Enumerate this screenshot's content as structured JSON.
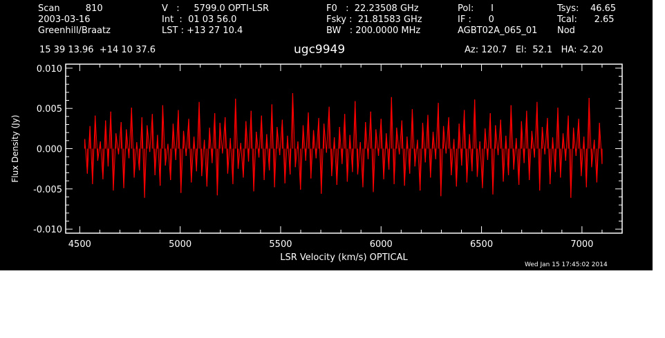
{
  "header": {
    "col1": [
      "Scan         810",
      "2003-03-16",
      "Greenhill/Braatz"
    ],
    "col2": [
      "V   :     5799.0 OPTI-LSR",
      "Int  :  01 03 56.0",
      "LST : +13 27 10.4"
    ],
    "col3": [
      "F0   :  22.23508 GHz",
      "Fsky :  21.81583 GHz",
      "BW   : 200.0000 MHz"
    ],
    "col4": [
      "Pol:      I",
      "IF :      0",
      "AGBT02A_065_01"
    ],
    "col5": [
      "Tsys:    46.65",
      "Tcal:      2.65",
      "Nod"
    ],
    "coords": "15 39 13.96  +14 10 37.6",
    "source": "ugc9949",
    "pointing": "Az: 120.7   El:  52.1   HA: -2.20",
    "timestamp": "Wed Jan 15 17:45:02 2014"
  },
  "colors": {
    "background": "#000000",
    "axes": "#ffffff",
    "trace": "#ff0000"
  },
  "chart_data": {
    "type": "line",
    "title": "ugc9949",
    "xlabel": "LSR Velocity (km/s) OPTICAL",
    "ylabel": "Flux Density (Jy)",
    "xlim": [
      4430,
      7200
    ],
    "ylim": [
      -0.0105,
      0.0105
    ],
    "xticks": [
      4500,
      5000,
      5500,
      6000,
      6500,
      7000
    ],
    "xtick_labels": [
      "4500",
      "5000",
      "5500",
      "6000",
      "6500",
      "7000"
    ],
    "yticks": [
      -0.01,
      -0.005,
      0.0,
      0.005,
      0.01
    ],
    "ytick_labels": [
      "-0.010",
      "-0.005",
      "0.000",
      "0.005",
      "0.010"
    ],
    "grid": false,
    "series": [
      {
        "x_start": 4525,
        "x_end": 7100,
        "values": [
          0.0012,
          -0.0031,
          0.0028,
          -0.0044,
          0.0041,
          -0.0015,
          0.0009,
          -0.0038,
          0.0035,
          -0.0022,
          0.0046,
          -0.0052,
          0.0019,
          -0.0007,
          0.0033,
          -0.0049,
          0.0024,
          -0.0012,
          0.0051,
          -0.0036,
          0.0008,
          -0.0027,
          0.0039,
          -0.0061,
          0.0029,
          -0.0004,
          0.0043,
          -0.0033,
          0.0017,
          -0.0046,
          0.0054,
          -0.0021,
          0.0006,
          -0.0039,
          0.0031,
          -0.0014,
          0.0048,
          -0.0055,
          0.0022,
          -0.0009,
          0.0037,
          -0.0042,
          0.0015,
          -0.0028,
          0.0058,
          -0.0034,
          0.0011,
          -0.0047,
          0.0026,
          -0.0018,
          0.0044,
          -0.0058,
          0.0032,
          -0.0006,
          0.0039,
          -0.0031,
          0.0013,
          -0.0044,
          0.0062,
          -0.0025,
          0.0007,
          -0.0036,
          0.0034,
          -0.0016,
          0.0047,
          -0.0053,
          0.0021,
          -0.0011,
          0.0041,
          -0.0039,
          0.0018,
          -0.0027,
          0.0055,
          -0.0048,
          0.0027,
          -0.0008,
          0.0036,
          -0.0043,
          0.0016,
          -0.0032,
          0.0069,
          -0.0023,
          0.0009,
          -0.0051,
          0.0029,
          -0.0015,
          0.0045,
          -0.0037,
          0.0023,
          -0.0012,
          0.0038,
          -0.0056,
          0.0031,
          -0.0005,
          0.0052,
          -0.0034,
          0.0014,
          -0.0045,
          0.0027,
          -0.0019,
          0.0043,
          -0.0041,
          0.0017,
          -0.0029,
          0.0059,
          -0.0032,
          0.0008,
          -0.0048,
          0.0033,
          -0.0013,
          0.0046,
          -0.0054,
          0.0024,
          -0.0009,
          0.0037,
          -0.0038,
          0.0019,
          -0.0026,
          0.0064,
          -0.0044,
          0.0026,
          -0.0007,
          0.0035,
          -0.0046,
          0.0015,
          -0.0031,
          0.0049,
          -0.0022,
          0.0011,
          -0.0052,
          0.0032,
          -0.0017,
          0.0042,
          -0.0036,
          0.0021,
          -0.0013,
          0.0057,
          -0.0059,
          0.0028,
          -0.0006,
          0.0039,
          -0.0033,
          0.0012,
          -0.0047,
          0.0031,
          -0.0021,
          0.0048,
          -0.0042,
          0.0018,
          -0.0028,
          0.0061,
          -0.0035,
          0.0009,
          -0.0049,
          0.0025,
          -0.0014,
          0.0044,
          -0.0057,
          0.0029,
          -0.0008,
          0.0036,
          -0.0041,
          0.0016,
          -0.0033,
          0.0054,
          -0.0026,
          0.0013,
          -0.0045,
          0.0034,
          -0.0018,
          0.0047,
          -0.0039,
          0.0022,
          -0.0011,
          0.0058,
          -0.0052,
          0.0027,
          -0.0007,
          0.0038,
          -0.0044,
          0.0014,
          -0.0029,
          0.0051,
          -0.0036,
          0.0019,
          -0.0015,
          0.0041,
          -0.0061,
          0.0026,
          -0.0009,
          0.0037,
          -0.0034,
          0.0015,
          -0.0048,
          0.0063,
          -0.0023,
          0.0011,
          -0.0042,
          0.0032,
          -0.0019
        ]
      }
    ]
  }
}
